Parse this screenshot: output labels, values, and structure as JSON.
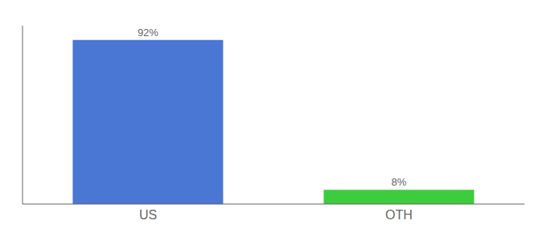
{
  "chart_data": {
    "type": "bar",
    "categories": [
      "US",
      "OTH"
    ],
    "values": [
      92,
      8
    ],
    "value_labels": [
      "92%",
      "8%"
    ],
    "colors": [
      "#4a76d4",
      "#3dcc3d"
    ],
    "data_labels": true,
    "ylim": [
      0,
      100
    ],
    "tick_labels": "x",
    "grid": false
  }
}
